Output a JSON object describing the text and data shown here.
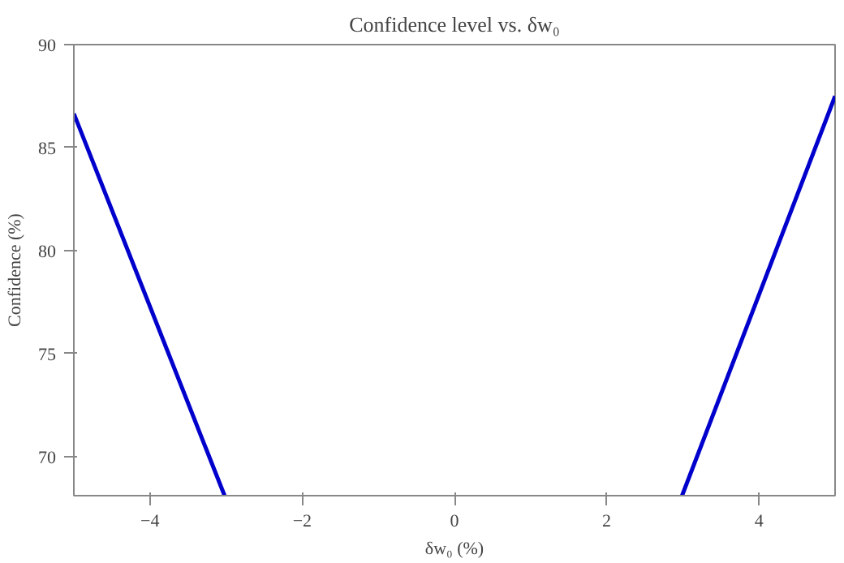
{
  "chart_data": {
    "type": "line",
    "title": "Confidence level vs. δw₀",
    "xlabel": "δw₀ (%)",
    "ylabel": "Confidence (%)",
    "series": [
      {
        "color": "#0000cc",
        "x": [
          -5,
          -3.02
        ],
        "values": [
          86.65,
          68.1
        ]
      },
      {
        "color": "#0000cc",
        "x": [
          2.99,
          5
        ],
        "values": [
          68.1,
          87.5
        ]
      }
    ],
    "xlim": [
      -5,
      5
    ],
    "ylim": [
      68.1,
      90
    ],
    "xticks": [
      -4,
      -2,
      0,
      2,
      4
    ],
    "yticks": [
      70,
      75,
      80,
      85,
      90
    ],
    "grid": false,
    "marker": "none",
    "line_style": "solid"
  }
}
